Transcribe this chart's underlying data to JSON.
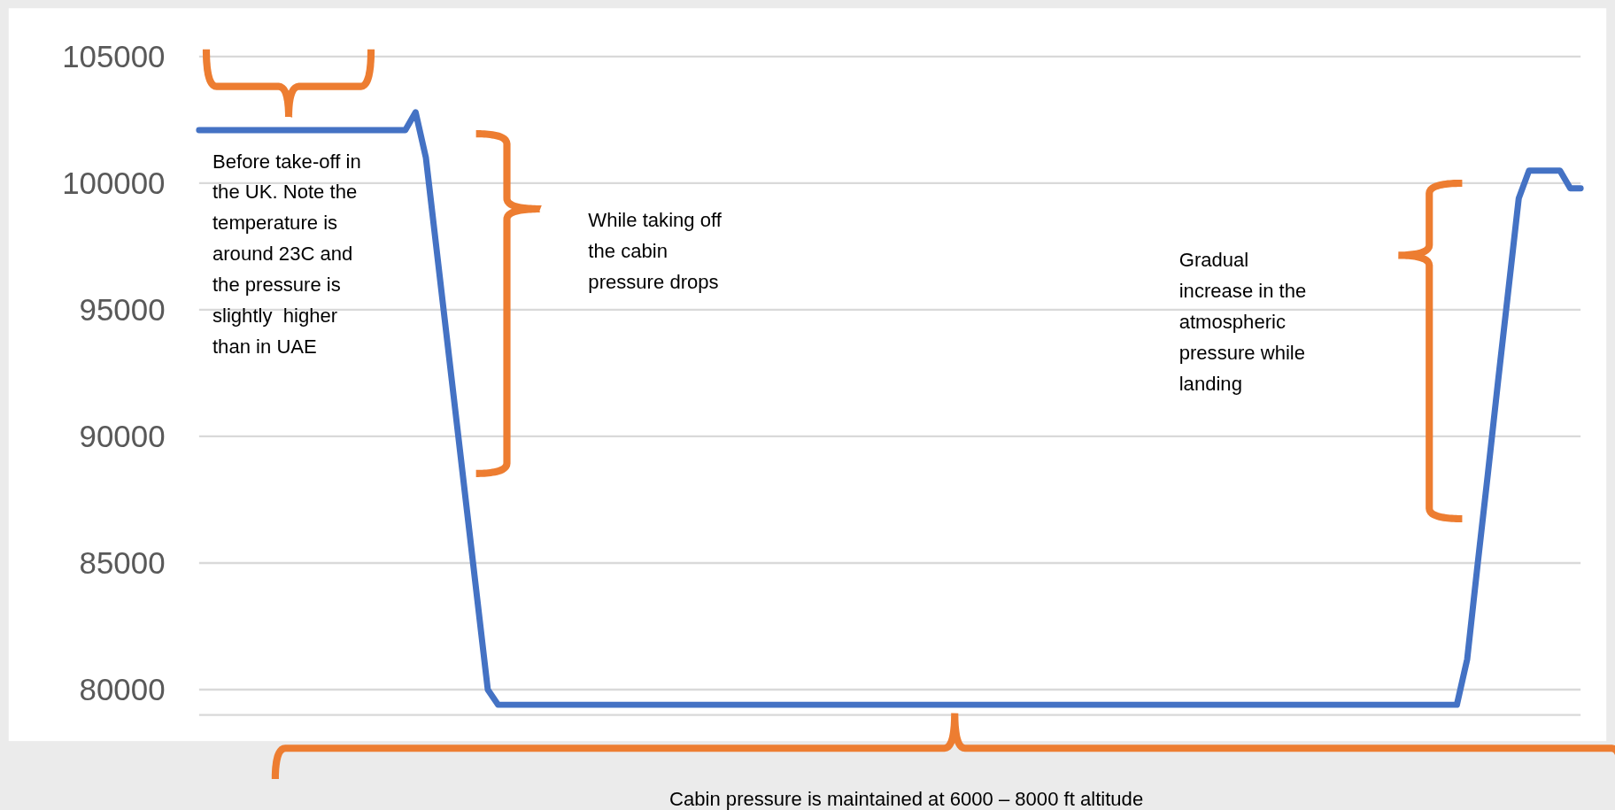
{
  "chart_data": {
    "type": "line",
    "categories": [
      null,
      null,
      null,
      null,
      null,
      null,
      null,
      null,
      null,
      null,
      null,
      null,
      null,
      null,
      null,
      null,
      null,
      null,
      null,
      null,
      null,
      null,
      null,
      null,
      null,
      null,
      null,
      null,
      null,
      null,
      null,
      null,
      null,
      null,
      null,
      null,
      null,
      null,
      null,
      null,
      null,
      null,
      null,
      null,
      null,
      null,
      null,
      null,
      null,
      null,
      null,
      null,
      null,
      null,
      null,
      null,
      null,
      null,
      null,
      null,
      null,
      null,
      null,
      null,
      null,
      null,
      null,
      null,
      null,
      null,
      null,
      null,
      null,
      null,
      null,
      null,
      null,
      null,
      null,
      null,
      null,
      null,
      null,
      null,
      null,
      null,
      null,
      null,
      null,
      null,
      null,
      null,
      null,
      null,
      null,
      null,
      null,
      null,
      null,
      null,
      null,
      null,
      null,
      null,
      null,
      null,
      null,
      null,
      null,
      null,
      null,
      null,
      null,
      null,
      null,
      null,
      null,
      null,
      null,
      null,
      null,
      null,
      null,
      null,
      null,
      null,
      null,
      null,
      null,
      null,
      null,
      null,
      null,
      null,
      null
    ],
    "series": [
      {
        "color": "#4472c4",
        "values": [
          102100,
          102100,
          102100,
          102100,
          102100,
          102100,
          102100,
          102100,
          102100,
          102100,
          102100,
          102100,
          102100,
          102100,
          102100,
          102100,
          102100,
          102100,
          102100,
          102100,
          102100,
          102800,
          101000,
          97500,
          94000,
          90500,
          87000,
          83500,
          80000,
          79400,
          79400,
          79400,
          79400,
          79400,
          79400,
          79400,
          79400,
          79400,
          79400,
          79400,
          79400,
          79400,
          79400,
          79400,
          79400,
          79400,
          79400,
          79400,
          79400,
          79400,
          79400,
          79400,
          79400,
          79400,
          79400,
          79400,
          79400,
          79400,
          79400,
          79400,
          79400,
          79400,
          79400,
          79400,
          79400,
          79400,
          79400,
          79400,
          79400,
          79400,
          79400,
          79400,
          79400,
          79400,
          79400,
          79400,
          79400,
          79400,
          79400,
          79400,
          79400,
          79400,
          79400,
          79400,
          79400,
          79400,
          79400,
          79400,
          79400,
          79400,
          79400,
          79400,
          79400,
          79400,
          79400,
          79400,
          79400,
          79400,
          79400,
          79400,
          79400,
          79400,
          79400,
          79400,
          79400,
          79400,
          79400,
          79400,
          79400,
          79400,
          79400,
          79400,
          79400,
          79400,
          79400,
          79400,
          79400,
          79400,
          79400,
          79400,
          79400,
          79400,
          79400,
          81200,
          84900,
          88500,
          92200,
          95800,
          99400,
          100500,
          100500,
          100500,
          100500,
          99800,
          99800
        ]
      }
    ],
    "ylim": [
      79000,
      105000
    ],
    "yticks": [
      80000,
      85000,
      90000,
      95000,
      100000,
      105000
    ],
    "grid": "y",
    "tick_labels": "y",
    "annotations": [
      "Before take-off in the UK. Note the temperature is around 23C and the pressure is slightly  higher than in UAE",
      "While taking off the cabin pressure drops",
      "Gradual increase in the atmospheric pressure while landing",
      "Cabin pressure is maintained at 6000 – 8000 ft altitude"
    ]
  }
}
